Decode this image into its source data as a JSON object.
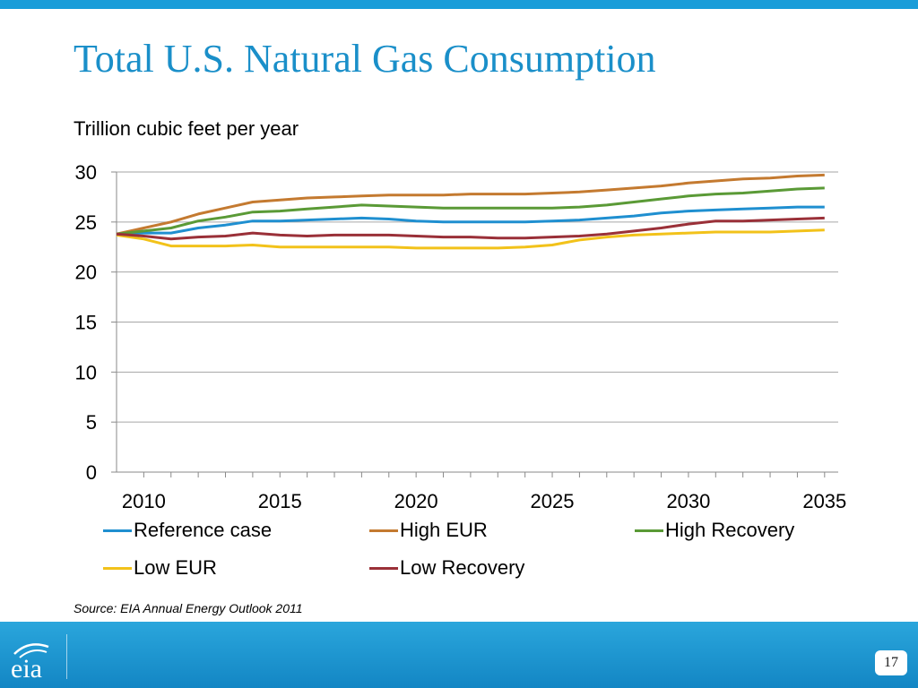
{
  "slide": {
    "title": "Total U.S. Natural Gas Consumption",
    "subtitle": "Trillion cubic feet per year",
    "source": "Source: EIA Annual Energy Outlook 2011",
    "page_number": "17",
    "logo_text": "eia",
    "accent_color": "#1a9dd9"
  },
  "chart_data": {
    "type": "line",
    "title": "Total U.S. Natural Gas Consumption",
    "ylabel": "Trillion cubic feet per year",
    "xlabel": "",
    "xlim": [
      2010,
      2035
    ],
    "ylim": [
      0,
      30
    ],
    "x_ticks": [
      2010,
      2015,
      2020,
      2025,
      2030,
      2035
    ],
    "y_ticks": [
      0,
      5,
      10,
      15,
      20,
      25,
      30
    ],
    "grid": true,
    "legend_position": "bottom",
    "x": [
      2009,
      2010,
      2011,
      2012,
      2013,
      2014,
      2015,
      2016,
      2017,
      2018,
      2019,
      2020,
      2021,
      2022,
      2023,
      2024,
      2025,
      2026,
      2027,
      2028,
      2029,
      2030,
      2031,
      2032,
      2033,
      2034,
      2035
    ],
    "series": [
      {
        "name": "Reference case",
        "color": "#1f8fd0",
        "values": [
          23.8,
          23.9,
          23.9,
          24.4,
          24.7,
          25.1,
          25.1,
          25.2,
          25.3,
          25.4,
          25.3,
          25.1,
          25.0,
          25.0,
          25.0,
          25.0,
          25.1,
          25.2,
          25.4,
          25.6,
          25.9,
          26.1,
          26.2,
          26.3,
          26.4,
          26.5,
          26.5
        ]
      },
      {
        "name": "High EUR",
        "color": "#c47a30",
        "values": [
          23.8,
          24.4,
          25.0,
          25.8,
          26.4,
          27.0,
          27.2,
          27.4,
          27.5,
          27.6,
          27.7,
          27.7,
          27.7,
          27.8,
          27.8,
          27.8,
          27.9,
          28.0,
          28.2,
          28.4,
          28.6,
          28.9,
          29.1,
          29.3,
          29.4,
          29.6,
          29.7
        ]
      },
      {
        "name": "High Recovery",
        "color": "#5a9a36",
        "values": [
          23.8,
          24.1,
          24.4,
          25.1,
          25.5,
          26.0,
          26.1,
          26.3,
          26.5,
          26.7,
          26.6,
          26.5,
          26.4,
          26.4,
          26.4,
          26.4,
          26.4,
          26.5,
          26.7,
          27.0,
          27.3,
          27.6,
          27.8,
          27.9,
          28.1,
          28.3,
          28.4
        ]
      },
      {
        "name": "Low EUR",
        "color": "#f2c21a",
        "values": [
          23.7,
          23.3,
          22.6,
          22.6,
          22.6,
          22.7,
          22.5,
          22.5,
          22.5,
          22.5,
          22.5,
          22.4,
          22.4,
          22.4,
          22.4,
          22.5,
          22.7,
          23.2,
          23.5,
          23.7,
          23.8,
          23.9,
          24.0,
          24.0,
          24.0,
          24.1,
          24.2
        ]
      },
      {
        "name": "Low Recovery",
        "color": "#9a3038",
        "values": [
          23.8,
          23.6,
          23.3,
          23.5,
          23.6,
          23.9,
          23.7,
          23.6,
          23.7,
          23.7,
          23.7,
          23.6,
          23.5,
          23.5,
          23.4,
          23.4,
          23.5,
          23.6,
          23.8,
          24.1,
          24.4,
          24.8,
          25.1,
          25.1,
          25.2,
          25.3,
          25.4
        ]
      }
    ]
  }
}
